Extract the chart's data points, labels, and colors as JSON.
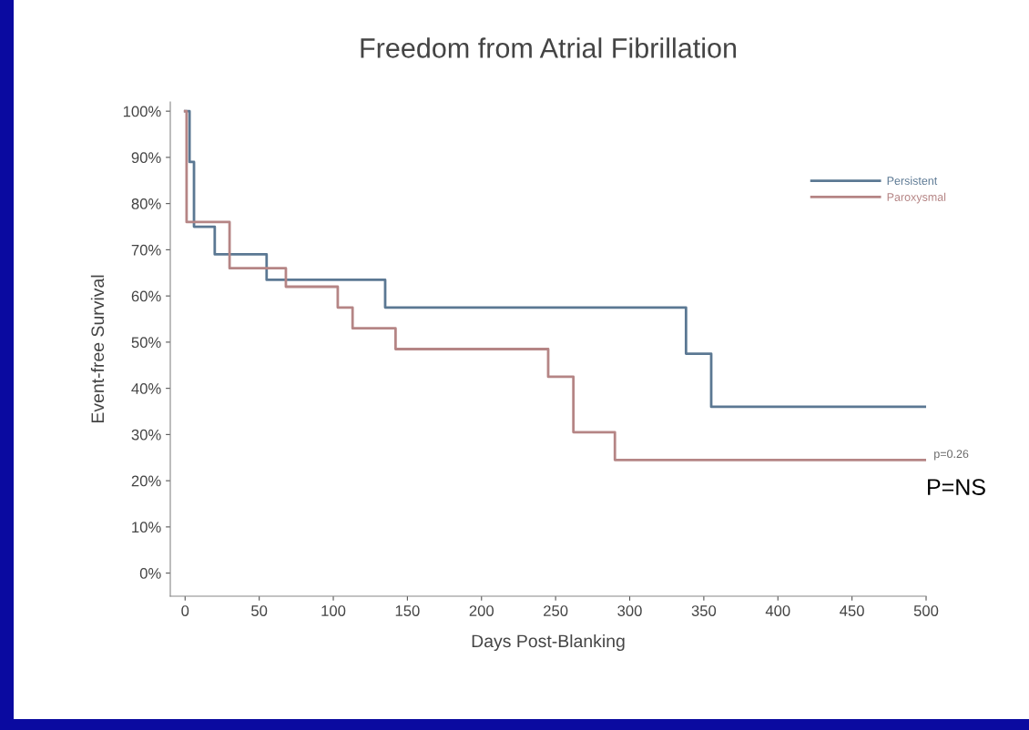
{
  "chart_data": {
    "type": "step",
    "title": "Freedom from Atrial Fibrillation",
    "xlabel": "Days Post-Blanking",
    "ylabel": "Event-free Survival",
    "series": [
      {
        "name": "Persistent",
        "color": "#5b7893",
        "x": [
          0,
          3,
          6,
          20,
          55,
          135,
          338,
          355,
          500
        ],
        "values": [
          100,
          89,
          75,
          69,
          63.5,
          57.5,
          47.5,
          36,
          36
        ]
      },
      {
        "name": "Paroxysmal",
        "color": "#b58585",
        "x": [
          0,
          1,
          30,
          68,
          103,
          113,
          142,
          245,
          262,
          290,
          500
        ],
        "values": [
          100,
          76,
          66,
          62,
          57.5,
          53,
          48.5,
          42.5,
          30.5,
          24.5,
          24.5
        ]
      }
    ],
    "xlim": [
      -10,
      500
    ],
    "xticks": [
      0,
      50,
      100,
      150,
      200,
      250,
      300,
      350,
      400,
      450,
      500
    ],
    "ylim": [
      -5,
      102
    ],
    "yticks": [
      {
        "value": 0,
        "label": "0%"
      },
      {
        "value": 10,
        "label": "10%"
      },
      {
        "value": 20,
        "label": "20%"
      },
      {
        "value": 30,
        "label": "30%"
      },
      {
        "value": 40,
        "label": "40%"
      },
      {
        "value": 50,
        "label": "50%"
      },
      {
        "value": 60,
        "label": "60%"
      },
      {
        "value": 70,
        "label": "70%"
      },
      {
        "value": 80,
        "label": "80%"
      },
      {
        "value": 90,
        "label": "90%"
      },
      {
        "value": 100,
        "label": "100%"
      }
    ],
    "legend": "top right",
    "grid": false,
    "annotations": [
      "p=0.26",
      "P=NS"
    ]
  }
}
